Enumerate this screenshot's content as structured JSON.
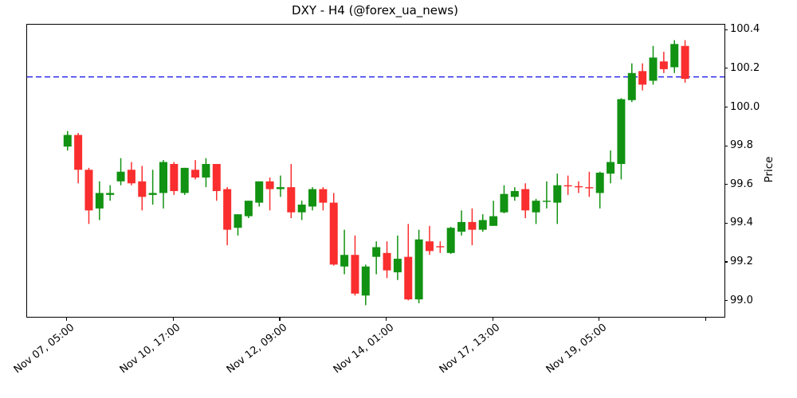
{
  "title": "DXY - H4 (@forex_ua_news)",
  "chart_data": {
    "type": "candlestick",
    "symbol": "DXY",
    "timeframe": "H4",
    "source_handle": "@forex_ua_news",
    "ylabel": "Price",
    "ylim": [
      98.92,
      100.43
    ],
    "y_ticks": [
      99.0,
      99.2,
      99.4,
      99.6,
      99.8,
      100.0,
      100.2,
      100.4
    ],
    "x_ticks": [
      {
        "index": 0,
        "label": "Nov 07, 05:00"
      },
      {
        "index": 10,
        "label": "Nov 10, 17:00"
      },
      {
        "index": 20,
        "label": "Nov 12, 09:00"
      },
      {
        "index": 30,
        "label": "Nov 14, 01:00"
      },
      {
        "index": 40,
        "label": "Nov 17, 13:00"
      },
      {
        "index": 50,
        "label": "Nov 19, 05:00"
      },
      {
        "index": 60,
        "label": ""
      }
    ],
    "grid": false,
    "legend": false,
    "hline": {
      "price": 100.16,
      "color": "#0d0de8",
      "style": "dashed"
    },
    "colors": {
      "up": "#129212",
      "down": "#fa2e2e"
    },
    "candles_format": [
      "open",
      "high",
      "low",
      "close"
    ],
    "candles": [
      [
        99.8,
        99.88,
        99.78,
        99.86
      ],
      [
        99.86,
        99.87,
        99.61,
        99.68
      ],
      [
        99.68,
        99.69,
        99.4,
        99.47
      ],
      [
        99.48,
        99.62,
        99.42,
        99.56
      ],
      [
        99.55,
        99.6,
        99.52,
        99.56
      ],
      [
        99.62,
        99.74,
        99.6,
        99.67
      ],
      [
        99.68,
        99.72,
        99.6,
        99.61
      ],
      [
        99.62,
        99.7,
        99.47,
        99.54
      ],
      [
        99.55,
        99.68,
        99.5,
        99.56
      ],
      [
        99.56,
        99.73,
        99.48,
        99.72
      ],
      [
        99.71,
        99.72,
        99.55,
        99.57
      ],
      [
        99.56,
        99.69,
        99.55,
        99.69
      ],
      [
        99.68,
        99.73,
        99.63,
        99.64
      ],
      [
        99.64,
        99.74,
        99.59,
        99.71
      ],
      [
        99.71,
        99.71,
        99.52,
        99.57
      ],
      [
        99.58,
        99.59,
        99.29,
        99.37
      ],
      [
        99.38,
        99.45,
        99.34,
        99.45
      ],
      [
        99.44,
        99.52,
        99.43,
        99.52
      ],
      [
        99.51,
        99.62,
        99.49,
        99.62
      ],
      [
        99.62,
        99.64,
        99.47,
        99.58
      ],
      [
        99.58,
        99.65,
        99.54,
        99.59
      ],
      [
        99.59,
        99.71,
        99.43,
        99.46
      ],
      [
        99.46,
        99.52,
        99.42,
        99.5
      ],
      [
        99.49,
        99.59,
        99.47,
        99.58
      ],
      [
        99.58,
        99.59,
        99.47,
        99.51
      ],
      [
        99.51,
        99.56,
        99.185,
        99.19
      ],
      [
        99.18,
        99.37,
        99.14,
        99.24
      ],
      [
        99.24,
        99.34,
        99.03,
        99.04
      ],
      [
        99.03,
        99.19,
        98.98,
        99.18
      ],
      [
        99.23,
        99.31,
        99.14,
        99.28
      ],
      [
        99.25,
        99.31,
        99.12,
        99.16
      ],
      [
        99.15,
        99.34,
        99.11,
        99.22
      ],
      [
        99.23,
        99.4,
        99.005,
        99.01
      ],
      [
        99.01,
        99.37,
        98.99,
        99.32
      ],
      [
        99.31,
        99.39,
        99.24,
        99.26
      ],
      [
        99.285,
        99.31,
        99.25,
        99.28
      ],
      [
        99.25,
        99.385,
        99.245,
        99.38
      ],
      [
        99.36,
        99.47,
        99.34,
        99.41
      ],
      [
        99.41,
        99.48,
        99.29,
        99.37
      ],
      [
        99.37,
        99.45,
        99.36,
        99.42
      ],
      [
        99.39,
        99.52,
        99.39,
        99.44
      ],
      [
        99.46,
        99.6,
        99.455,
        99.555
      ],
      [
        99.54,
        99.59,
        99.52,
        99.57
      ],
      [
        99.58,
        99.61,
        99.43,
        99.47
      ],
      [
        99.46,
        99.53,
        99.4,
        99.52
      ],
      [
        99.515,
        99.62,
        99.48,
        99.52
      ],
      [
        99.51,
        99.66,
        99.4,
        99.6
      ],
      [
        99.6,
        99.65,
        99.55,
        99.595
      ],
      [
        99.595,
        99.62,
        99.56,
        99.59
      ],
      [
        99.59,
        99.67,
        99.54,
        99.585
      ],
      [
        99.56,
        99.67,
        99.48,
        99.665
      ],
      [
        99.66,
        99.78,
        99.61,
        99.72
      ],
      [
        99.71,
        100.05,
        99.63,
        100.045
      ],
      [
        100.04,
        100.23,
        100.03,
        100.18
      ],
      [
        100.19,
        100.23,
        100.09,
        100.12
      ],
      [
        100.14,
        100.32,
        100.12,
        100.26
      ],
      [
        100.24,
        100.29,
        100.18,
        100.2
      ],
      [
        100.21,
        100.35,
        100.18,
        100.33
      ],
      [
        100.32,
        100.35,
        100.13,
        100.15
      ]
    ]
  }
}
